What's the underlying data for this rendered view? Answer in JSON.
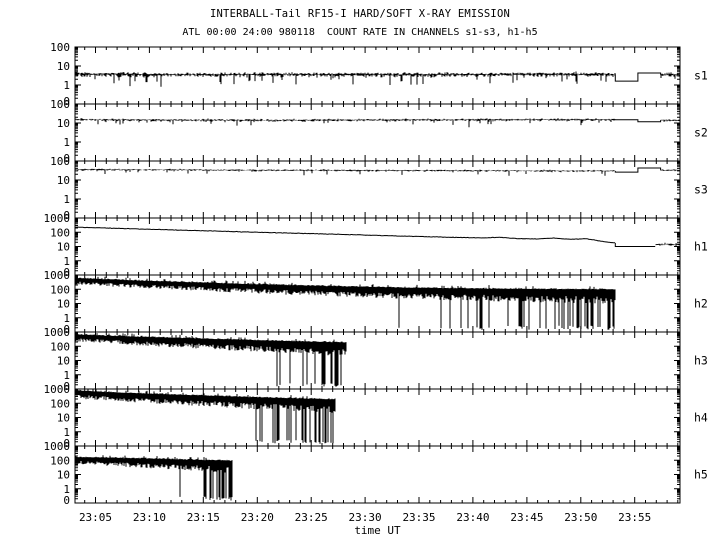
{
  "header": {
    "title": "INTERBALL-Tail RF15-I HARD/SOFT X-RAY EMISSION",
    "subtitle": "ATL 00:00 24:00 980118  COUNT RATE IN CHANNELS s1-s3, h1-h5"
  },
  "chart_data": {
    "type": "line",
    "title": "INTERBALL-Tail RF15-I HARD/SOFT X-RAY EMISSION",
    "subtitle": "ATL 00:00 24:00 980118  COUNT RATE IN CHANNELS s1-s3, h1-h5",
    "xlabel": "time UT",
    "x_unit": "minutes after 23:00 UT on 1998-01-18",
    "x_range": [
      3.1,
      59.2
    ],
    "x_major_ticks": [
      5,
      10,
      15,
      20,
      25,
      30,
      35,
      40,
      45,
      50,
      55
    ],
    "x_tick_labels": [
      "23:05",
      "23:10",
      "23:15",
      "23:20",
      "23:25",
      "23:30",
      "23:35",
      "23:40",
      "23:45",
      "23:50",
      "23:55"
    ],
    "x_minor_tick_step_min": 1,
    "grid": false,
    "background": "#ffffff",
    "trace_color": "#000000",
    "seed": 987654321,
    "panels": [
      {
        "name": "s1",
        "kind": "noisy",
        "scale_top": 100,
        "decades": 3,
        "y_labels": [
          "100",
          "10",
          "1",
          "0"
        ],
        "base": [
          [
            3.1,
            3.8
          ],
          [
            13,
            3.5
          ],
          [
            23,
            3.7
          ],
          [
            33,
            3.5
          ],
          [
            43,
            3.7
          ],
          [
            53.2,
            3.7
          ]
        ],
        "noise_dex": 0.1,
        "spike_prob": 0.1,
        "spike_dex": 0.5,
        "flats": [
          {
            "t0": 53.2,
            "t1": 55.3,
            "v": 1.6
          },
          {
            "t0": 55.3,
            "t1": 57.4,
            "v": 4.3
          }
        ],
        "post": {
          "t0": 57.4,
          "t1": 59.2,
          "v": 3.5
        },
        "end": 59.2
      },
      {
        "name": "s2",
        "kind": "noisy",
        "scale_top": 100,
        "decades": 3,
        "y_labels": [
          "100",
          "10",
          "1",
          "0"
        ],
        "base": [
          [
            3.1,
            15
          ],
          [
            20,
            14
          ],
          [
            40,
            15
          ],
          [
            53.2,
            15
          ]
        ],
        "noise_dex": 0.055,
        "spike_prob": 0.06,
        "spike_dex": 0.3,
        "flats": [
          {
            "t0": 53.2,
            "t1": 55.3,
            "v": 15
          },
          {
            "t0": 55.3,
            "t1": 57.4,
            "v": 11.5
          }
        ],
        "post": {
          "t0": 57.4,
          "t1": 59.2,
          "v": 14
        },
        "end": 59.2
      },
      {
        "name": "s3",
        "kind": "noisy",
        "scale_top": 100,
        "decades": 3,
        "y_labels": [
          "100",
          "10",
          "1",
          "0"
        ],
        "base": [
          [
            3.1,
            36
          ],
          [
            20,
            33
          ],
          [
            40,
            31
          ],
          [
            53.2,
            30
          ]
        ],
        "noise_dex": 0.045,
        "spike_prob": 0.05,
        "spike_dex": 0.25,
        "flats": [
          {
            "t0": 53.2,
            "t1": 55.3,
            "v": 26
          },
          {
            "t0": 55.3,
            "t1": 57.4,
            "v": 43
          }
        ],
        "post": {
          "t0": 57.4,
          "t1": 59.2,
          "v": 33
        },
        "end": 59.2
      },
      {
        "name": "h1",
        "kind": "smooth",
        "scale_top": 1000,
        "decades": 4,
        "y_labels": [
          "1000",
          "100",
          "10",
          "1",
          "0"
        ],
        "base": [
          [
            3.1,
            230
          ],
          [
            8,
            180
          ],
          [
            13,
            140
          ],
          [
            18,
            110
          ],
          [
            23,
            88
          ],
          [
            28,
            70
          ],
          [
            33,
            55
          ],
          [
            38,
            44
          ],
          [
            41,
            40
          ],
          [
            42.5,
            45
          ],
          [
            44,
            36
          ],
          [
            46,
            34
          ],
          [
            47.5,
            39
          ],
          [
            49,
            32
          ],
          [
            50.5,
            35
          ],
          [
            51.5,
            26
          ],
          [
            52.5,
            20
          ],
          [
            53.2,
            18
          ]
        ],
        "noise_dex": 0.018,
        "flats": [
          {
            "t0": 53.2,
            "t1": 56.9,
            "v": 10
          }
        ],
        "post": {
          "t0": 56.9,
          "t1": 59.2,
          "v": 14
        },
        "post_noise_dex": 0.12,
        "end": 59.2
      },
      {
        "name": "h2",
        "kind": "band",
        "scale_top": 1000,
        "decades": 4,
        "y_labels": [
          "1000",
          "100",
          "10",
          "1",
          "0"
        ],
        "env_top": [
          [
            3.1,
            600
          ],
          [
            8,
            420
          ],
          [
            13,
            320
          ],
          [
            18,
            240
          ],
          [
            23,
            190
          ],
          [
            28,
            155
          ],
          [
            33,
            130
          ],
          [
            38,
            115
          ],
          [
            43,
            105
          ],
          [
            48,
            100
          ],
          [
            53.2,
            95
          ]
        ],
        "band_dex": 0.45,
        "band_dex_end": 1.0,
        "dropouts": {
          "t_start": 30.5,
          "p_end": 0.55,
          "floor": 0.14
        },
        "end": 53.2
      },
      {
        "name": "h3",
        "kind": "band",
        "scale_top": 1000,
        "decades": 4,
        "y_labels": [
          "1000",
          "100",
          "10",
          "1",
          "0"
        ],
        "env_top": [
          [
            3.1,
            650
          ],
          [
            8,
            480
          ],
          [
            12,
            390
          ],
          [
            16,
            320
          ],
          [
            20,
            260
          ],
          [
            24,
            215
          ],
          [
            28.3,
            180
          ]
        ],
        "band_dex": 0.5,
        "band_dex_end": 0.95,
        "dropouts": {
          "t_start": 18.5,
          "p_end": 0.5,
          "floor": 0.14
        },
        "end": 28.3
      },
      {
        "name": "h4",
        "kind": "band",
        "scale_top": 1000,
        "decades": 4,
        "y_labels": [
          "1000",
          "100",
          "10",
          "1",
          "0"
        ],
        "env_top": [
          [
            3.1,
            750
          ],
          [
            7,
            560
          ],
          [
            11,
            430
          ],
          [
            15,
            340
          ],
          [
            19,
            270
          ],
          [
            23,
            220
          ],
          [
            27.3,
            185
          ]
        ],
        "band_dex": 0.55,
        "band_dex_end": 0.95,
        "dropouts": {
          "t_start": 14.5,
          "p_end": 0.5,
          "floor": 0.14
        },
        "end": 27.3
      },
      {
        "name": "h5",
        "kind": "band",
        "scale_top": 1000,
        "decades": 4,
        "y_labels": [
          "1000",
          "100",
          "10",
          "1",
          "0"
        ],
        "env_top": [
          [
            3.1,
            165
          ],
          [
            6,
            148
          ],
          [
            9,
            132
          ],
          [
            12,
            116
          ],
          [
            15,
            102
          ],
          [
            17.7,
            92
          ]
        ],
        "band_dex": 0.5,
        "band_dex_end": 0.85,
        "dropouts": {
          "t_start": 11.5,
          "p_end": 0.55,
          "floor": 0.14
        },
        "end": 17.7
      }
    ]
  }
}
